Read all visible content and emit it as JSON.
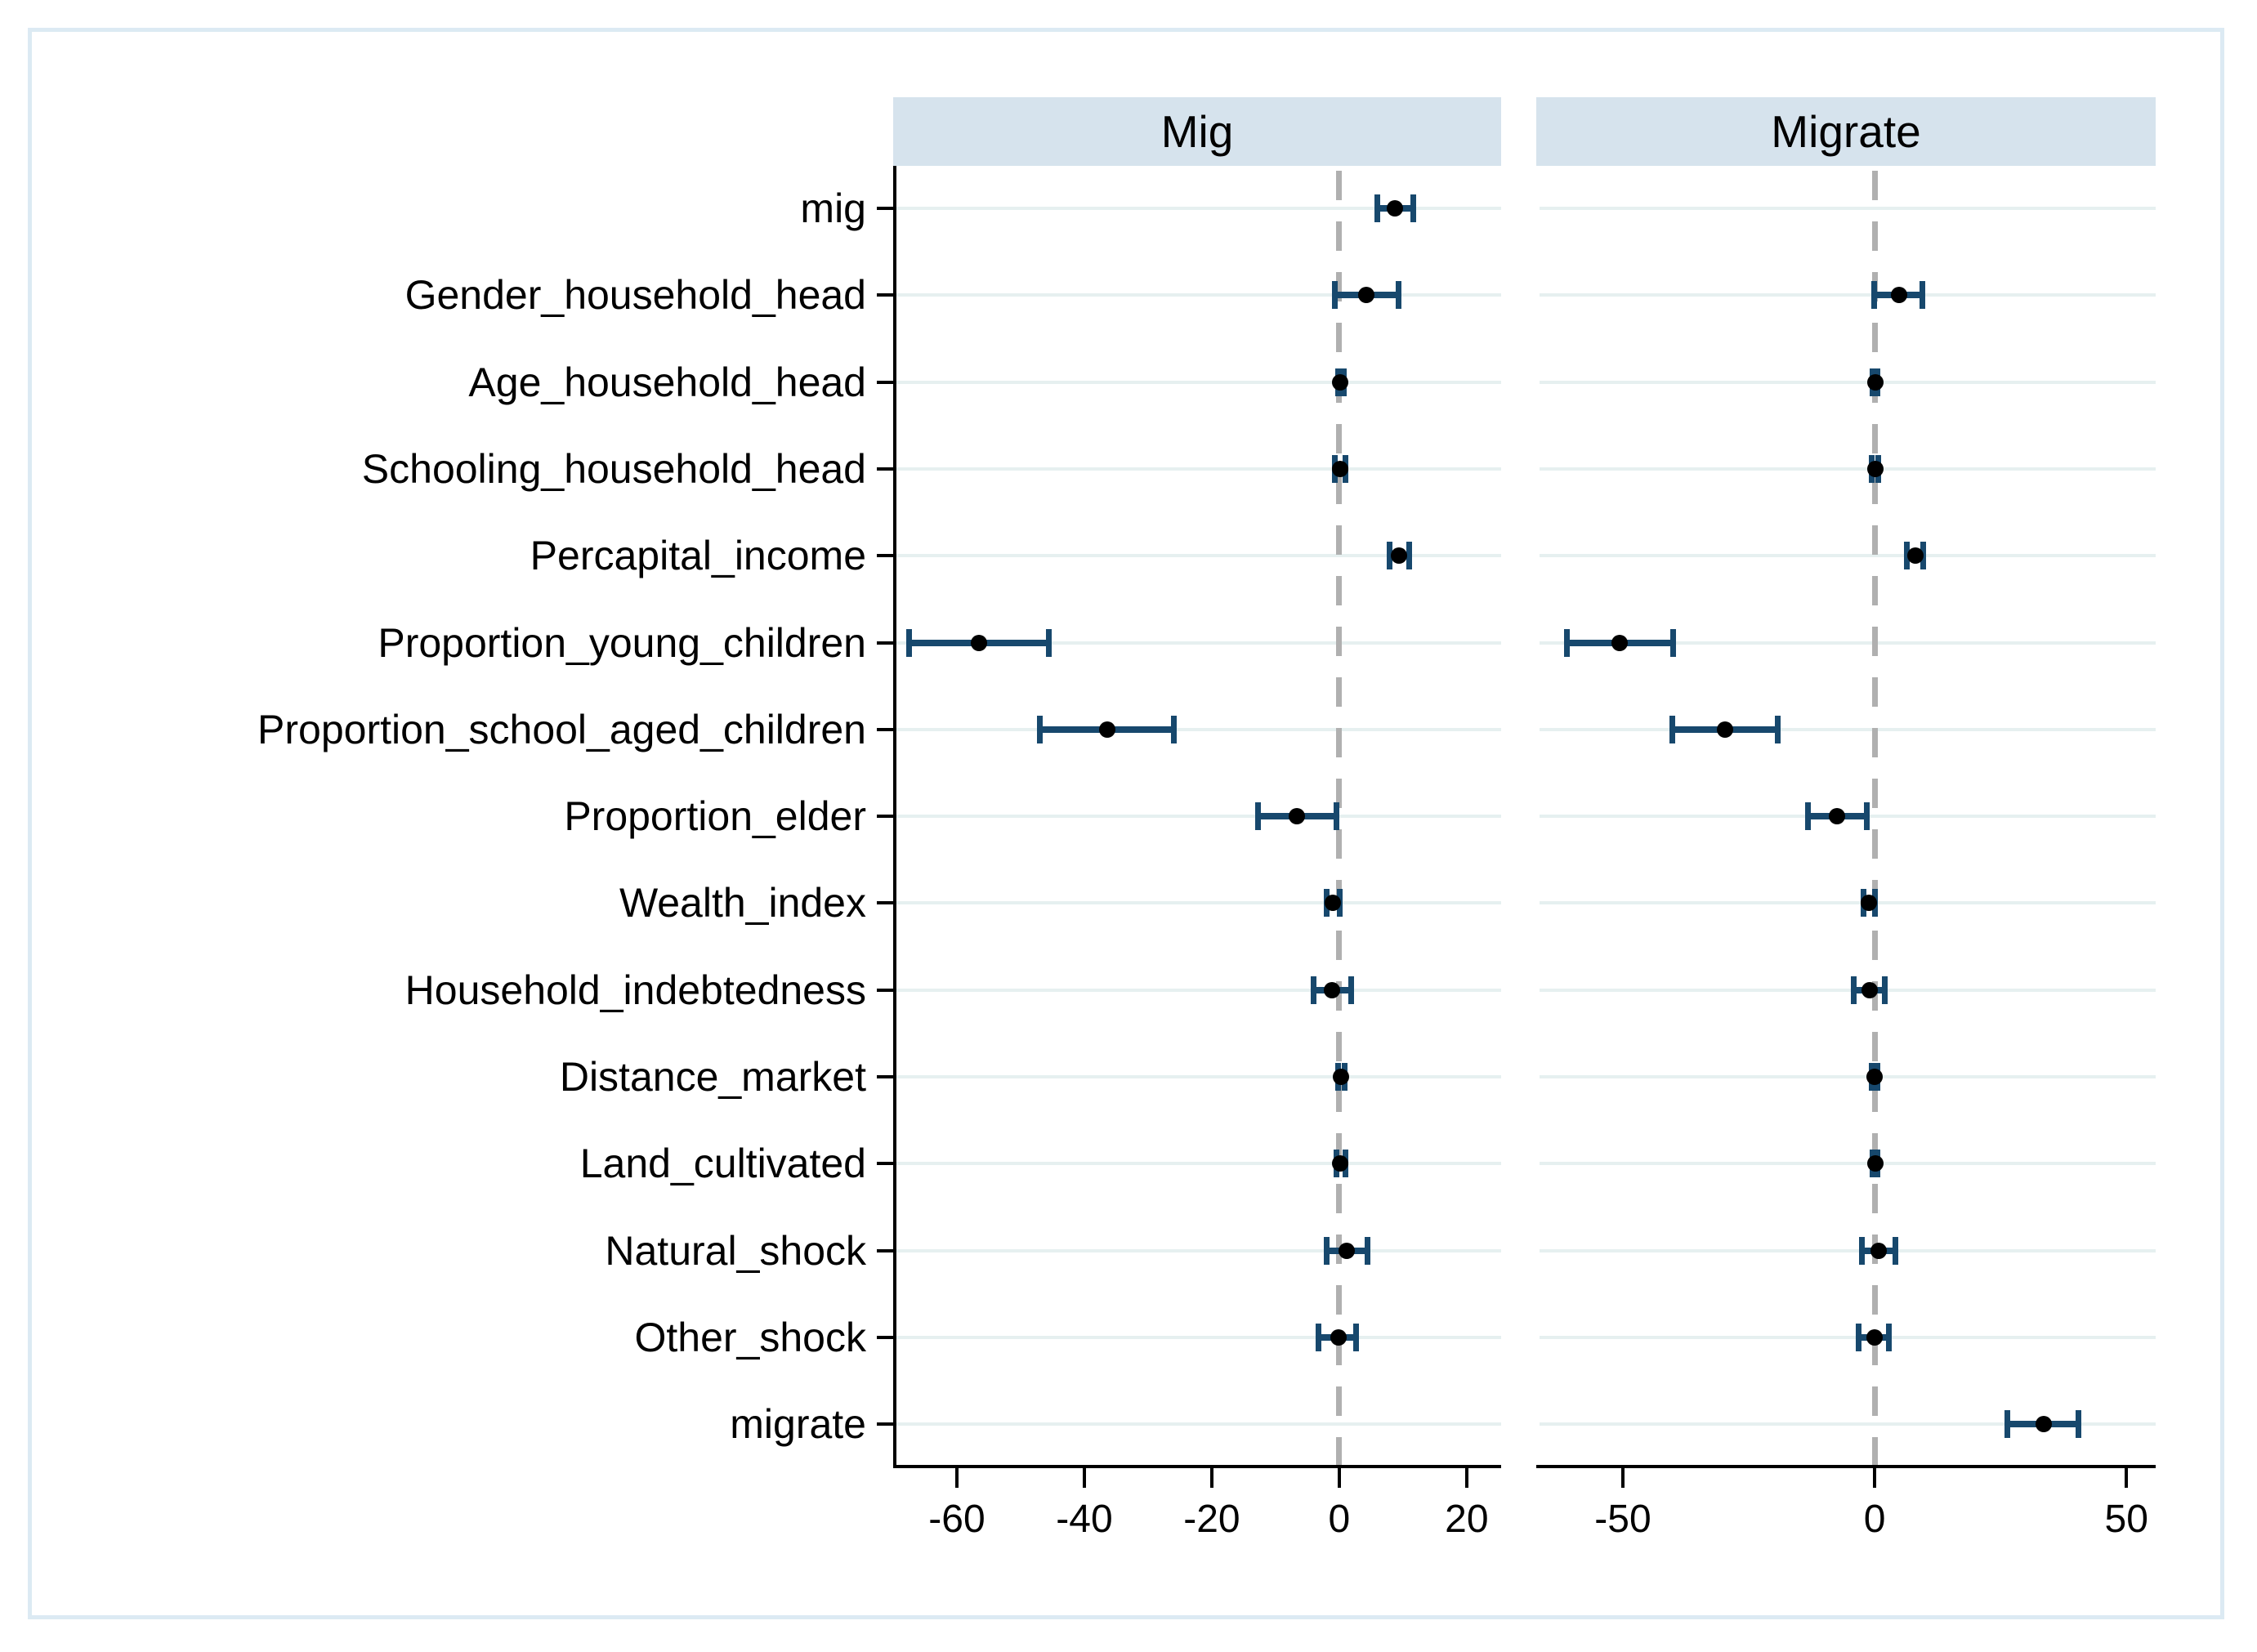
{
  "chart_data": {
    "type": "scatter",
    "subtype": "coefficient_plot_with_95ci",
    "title": "",
    "xlabel": "",
    "ylabel": "",
    "grid": true,
    "zero_line": true,
    "legend": null,
    "categories": [
      "mig",
      "Gender_household_head",
      "Age_household_head",
      "Schooling_household_head",
      "Percapital_income",
      "Proportion_young_children",
      "Proportion_school_aged_children",
      "Proportion_elder",
      "Wealth_index",
      "Household_indebtedness",
      "Distance_market",
      "Land_cultivated",
      "Natural_shock",
      "Other_shock",
      "migrate"
    ],
    "panels": [
      {
        "label": "Mig",
        "xticks": [
          "-60",
          "-40",
          "-20",
          "0",
          "20"
        ],
        "xtick_values": [
          -60,
          -40,
          -20,
          0,
          20
        ],
        "xlim": [
          -70,
          25.4
        ],
        "estimates": [
          {
            "b": 8.7,
            "lo": 5.9,
            "hi": 11.7
          },
          {
            "b": 4.2,
            "lo": -0.8,
            "hi": 9.4
          },
          {
            "b": 0.2,
            "lo": -0.3,
            "hi": 0.8
          },
          {
            "b": 0.2,
            "lo": -0.7,
            "hi": 1.0
          },
          {
            "b": 9.4,
            "lo": 7.8,
            "hi": 11.0
          },
          {
            "b": -56.5,
            "lo": -67.6,
            "hi": -45.5
          },
          {
            "b": -36.4,
            "lo": -47.0,
            "hi": -25.9
          },
          {
            "b": -6.6,
            "lo": -12.8,
            "hi": -0.4
          },
          {
            "b": -1.0,
            "lo": -2.1,
            "hi": 0.1
          },
          {
            "b": -1.1,
            "lo": -4.1,
            "hi": 1.9
          },
          {
            "b": 0.3,
            "lo": -0.3,
            "hi": 0.9
          },
          {
            "b": 0.2,
            "lo": -0.5,
            "hi": 1.0
          },
          {
            "b": 1.2,
            "lo": -2.1,
            "hi": 4.5
          },
          {
            "b": -0.1,
            "lo": -3.3,
            "hi": 2.7
          },
          null
        ]
      },
      {
        "label": "Migrate",
        "xticks": [
          "-50",
          "0",
          "50"
        ],
        "xtick_values": [
          -50,
          0,
          50
        ],
        "xlim": [
          -67.2,
          55.8
        ],
        "estimates": [
          null,
          {
            "b": 4.9,
            "lo": -0.2,
            "hi": 9.6
          },
          {
            "b": 0.1,
            "lo": -0.5,
            "hi": 0.6
          },
          {
            "b": 0.1,
            "lo": -0.6,
            "hi": 0.8
          },
          {
            "b": 8.1,
            "lo": 6.3,
            "hi": 9.7
          },
          {
            "b": -50.6,
            "lo": -61.2,
            "hi": -39.9
          },
          {
            "b": -29.7,
            "lo": -40.3,
            "hi": -19.2
          },
          {
            "b": -7.5,
            "lo": -13.3,
            "hi": -1.5
          },
          {
            "b": -1.1,
            "lo": -2.3,
            "hi": 0.1
          },
          {
            "b": -1.0,
            "lo": -4.2,
            "hi": 2.1
          },
          {
            "b": 0.0,
            "lo": -0.6,
            "hi": 0.6
          },
          {
            "b": 0.1,
            "lo": -0.5,
            "hi": 0.6
          },
          {
            "b": 0.8,
            "lo": -2.6,
            "hi": 4.2
          },
          {
            "b": -0.1,
            "lo": -3.2,
            "hi": 2.9
          },
          {
            "b": 33.5,
            "lo": 26.3,
            "hi": 40.6
          }
        ]
      }
    ],
    "colors": {
      "panel_header_fill": "#d6e3ed",
      "gridline": "#e6f0f0",
      "ci_bar": "#17486d",
      "point_marker": "#000000",
      "zero_line_dash": "#b0b0b0",
      "axis": "#000000",
      "figure_border": "#dceaf3",
      "background": "#ffffff"
    }
  }
}
